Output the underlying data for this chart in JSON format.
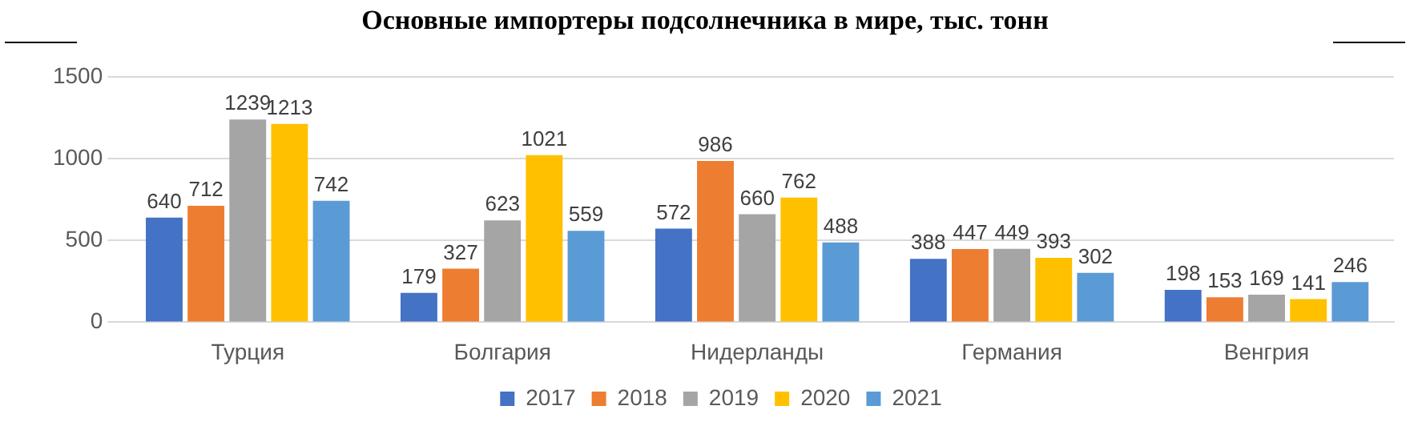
{
  "chart_data": {
    "type": "bar",
    "title": "Основные импортеры подсолнечника в мире, тыс. тонн",
    "categories": [
      "Турция",
      "Болгария",
      "Нидерланды",
      "Германия",
      "Венгрия"
    ],
    "series": [
      {
        "name": "2017",
        "color": "#4472c4",
        "values": [
          640,
          179,
          572,
          388,
          198
        ]
      },
      {
        "name": "2018",
        "color": "#ed7d31",
        "values": [
          712,
          327,
          986,
          447,
          153
        ]
      },
      {
        "name": "2019",
        "color": "#a5a5a5",
        "values": [
          1239,
          623,
          660,
          449,
          169
        ]
      },
      {
        "name": "2020",
        "color": "#ffc000",
        "values": [
          1213,
          1021,
          762,
          393,
          141
        ]
      },
      {
        "name": "2021",
        "color": "#5b9bd5",
        "values": [
          742,
          559,
          488,
          302,
          246
        ]
      }
    ],
    "ylim": [
      0,
      1500
    ],
    "yticks": [
      0,
      500,
      1000,
      1500
    ],
    "grid": "y",
    "legend": "bottom",
    "data_labels": true
  }
}
